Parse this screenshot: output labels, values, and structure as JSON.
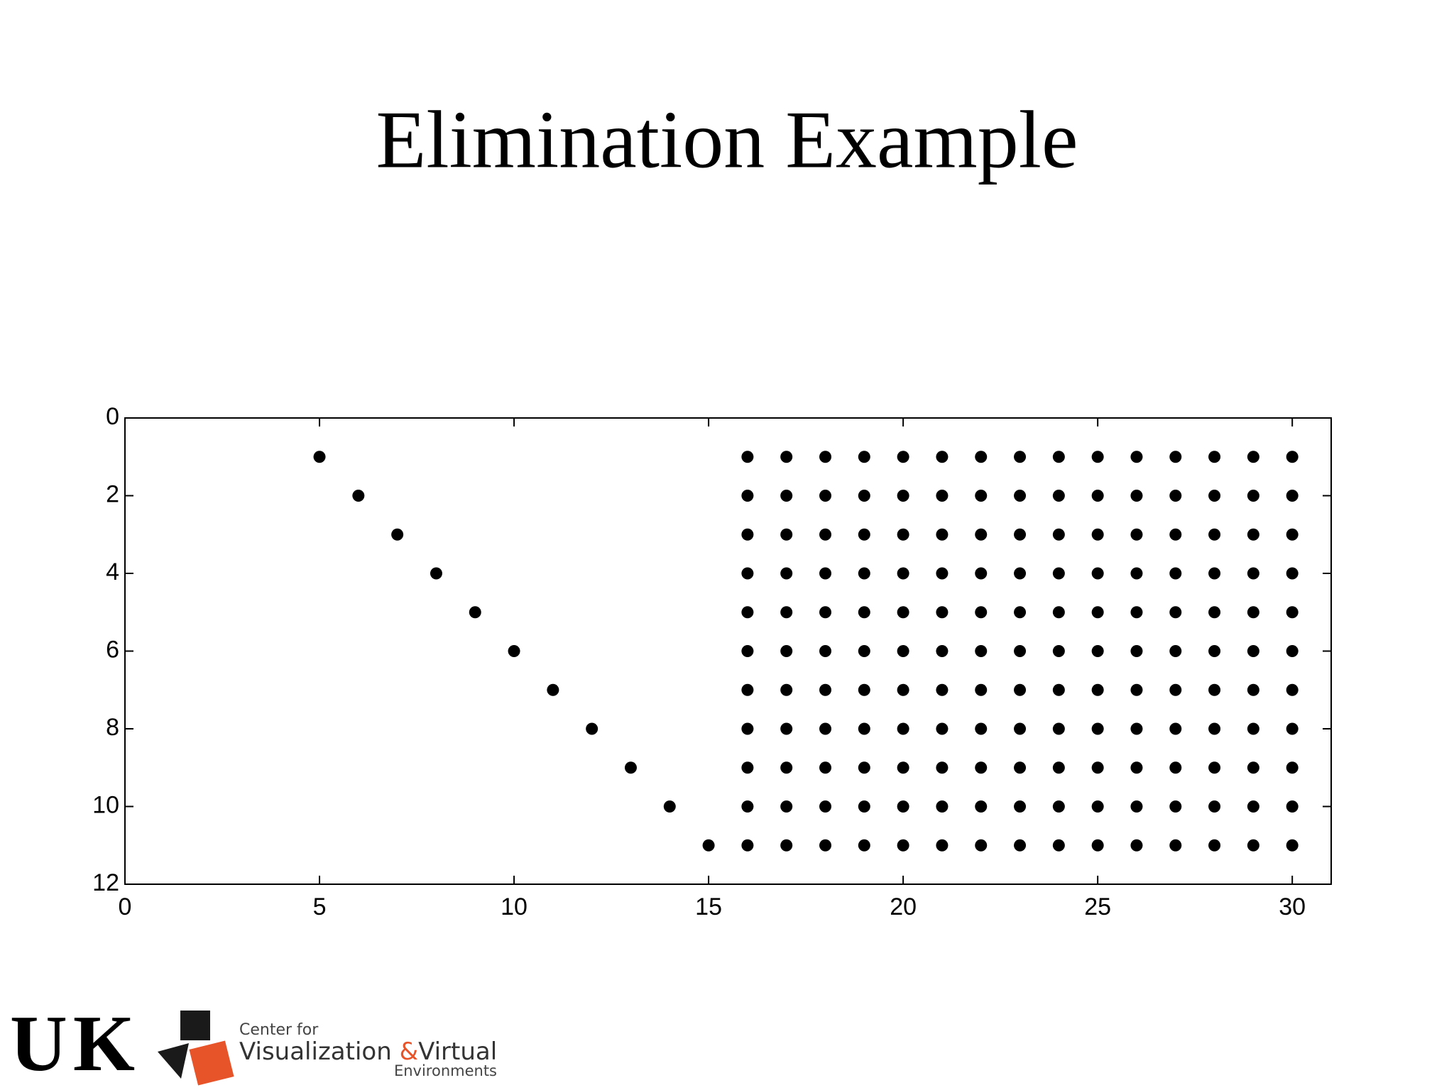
{
  "chart_data": {
    "type": "scatter",
    "title": "Elimination Example",
    "x": [
      5,
      16,
      17,
      18,
      19,
      20,
      21,
      22,
      23,
      24,
      25,
      26,
      27,
      28,
      29,
      30,
      6,
      16,
      17,
      18,
      19,
      20,
      21,
      22,
      23,
      24,
      25,
      26,
      27,
      28,
      29,
      30,
      7,
      16,
      17,
      18,
      19,
      20,
      21,
      22,
      23,
      24,
      25,
      26,
      27,
      28,
      29,
      30,
      8,
      16,
      17,
      18,
      19,
      20,
      21,
      22,
      23,
      24,
      25,
      26,
      27,
      28,
      29,
      30,
      9,
      16,
      17,
      18,
      19,
      20,
      21,
      22,
      23,
      24,
      25,
      26,
      27,
      28,
      29,
      30,
      10,
      16,
      17,
      18,
      19,
      20,
      21,
      22,
      23,
      24,
      25,
      26,
      27,
      28,
      29,
      30,
      11,
      16,
      17,
      18,
      19,
      20,
      21,
      22,
      23,
      24,
      25,
      26,
      27,
      28,
      29,
      30,
      12,
      16,
      17,
      18,
      19,
      20,
      21,
      22,
      23,
      24,
      25,
      26,
      27,
      28,
      29,
      30,
      13,
      16,
      17,
      18,
      19,
      20,
      21,
      22,
      23,
      24,
      25,
      26,
      27,
      28,
      29,
      30,
      14,
      16,
      17,
      18,
      19,
      20,
      21,
      22,
      23,
      24,
      25,
      26,
      27,
      28,
      29,
      30,
      15,
      16,
      17,
      18,
      19,
      20,
      21,
      22,
      23,
      24,
      25,
      26,
      27,
      28,
      29,
      30
    ],
    "values": [
      1,
      1,
      1,
      1,
      1,
      1,
      1,
      1,
      1,
      1,
      1,
      1,
      1,
      1,
      1,
      1,
      2,
      2,
      2,
      2,
      2,
      2,
      2,
      2,
      2,
      2,
      2,
      2,
      2,
      2,
      2,
      2,
      3,
      3,
      3,
      3,
      3,
      3,
      3,
      3,
      3,
      3,
      3,
      3,
      3,
      3,
      3,
      3,
      4,
      4,
      4,
      4,
      4,
      4,
      4,
      4,
      4,
      4,
      4,
      4,
      4,
      4,
      4,
      4,
      5,
      5,
      5,
      5,
      5,
      5,
      5,
      5,
      5,
      5,
      5,
      5,
      5,
      5,
      5,
      5,
      6,
      6,
      6,
      6,
      6,
      6,
      6,
      6,
      6,
      6,
      6,
      6,
      6,
      6,
      6,
      6,
      7,
      7,
      7,
      7,
      7,
      7,
      7,
      7,
      7,
      7,
      7,
      7,
      7,
      7,
      7,
      7,
      8,
      8,
      8,
      8,
      8,
      8,
      8,
      8,
      8,
      8,
      8,
      8,
      8,
      8,
      8,
      8,
      9,
      9,
      9,
      9,
      9,
      9,
      9,
      9,
      9,
      9,
      9,
      9,
      9,
      9,
      9,
      9,
      10,
      10,
      10,
      10,
      10,
      10,
      10,
      10,
      10,
      10,
      10,
      10,
      10,
      10,
      10,
      10,
      11,
      11,
      11,
      11,
      11,
      11,
      11,
      11,
      11,
      11,
      11,
      11,
      11,
      11,
      11,
      11
    ],
    "color": "#000000",
    "xlim": [
      0,
      31
    ],
    "xticks": [
      0,
      5,
      10,
      15,
      20,
      25,
      30
    ],
    "ylim": [
      0,
      12
    ],
    "yticks": [
      0,
      2,
      4,
      6,
      8,
      10,
      12
    ],
    "y_reversed": true,
    "grid": false
  },
  "footer": {
    "university": "UK",
    "center_line1": "Center for",
    "center_name_a": "Visualization",
    "ampersand": "&",
    "center_name_b": "Virtual",
    "center_line3": "Environments"
  }
}
